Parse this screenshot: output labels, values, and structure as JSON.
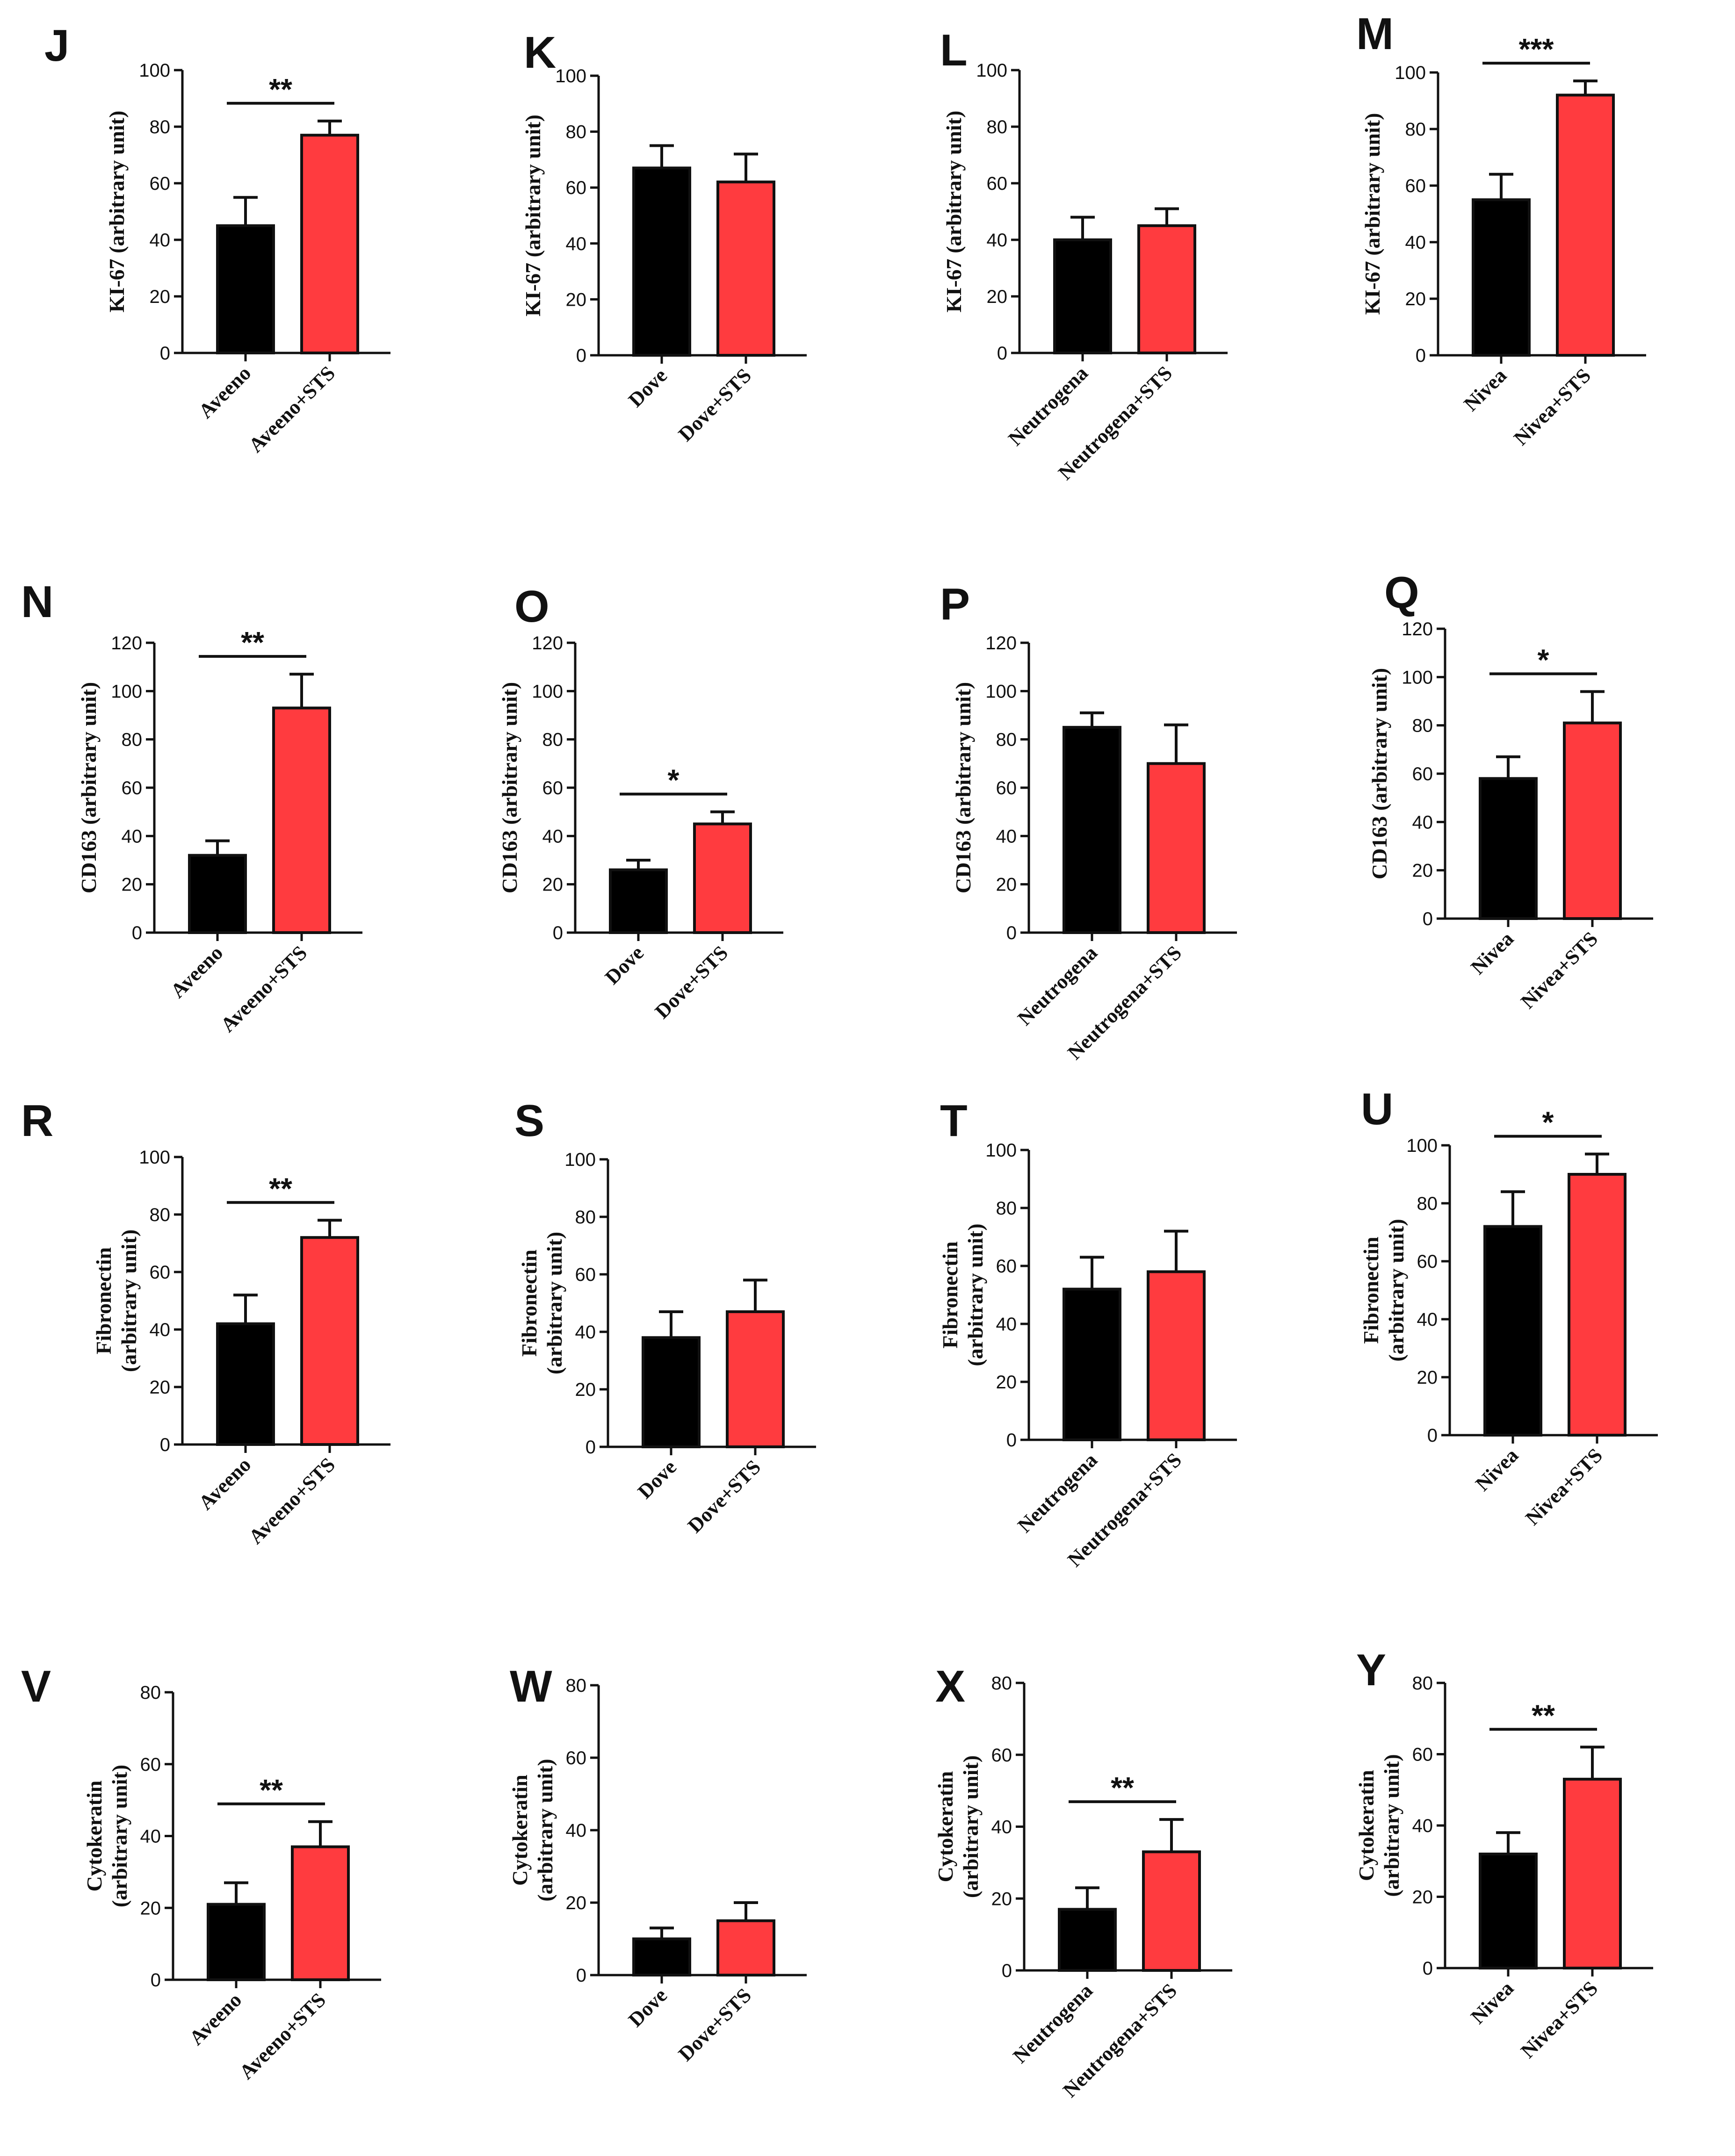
{
  "colors": {
    "control": "#000000",
    "treated": "#ff3b3f",
    "ink": "#111111"
  },
  "chart_data": [
    {
      "panel": "J",
      "type": "bar",
      "ylabel": "KI-67 (arbitrary unit)",
      "ylim": [
        0,
        100
      ],
      "ticks": [
        0,
        20,
        40,
        60,
        80,
        100
      ],
      "categories": [
        "Aveeno",
        "Aveeno+STS"
      ],
      "values": [
        45,
        77
      ],
      "errors": [
        10,
        5
      ],
      "significance": "**"
    },
    {
      "panel": "K",
      "type": "bar",
      "ylabel": "KI-67 (arbitrary unit)",
      "ylim": [
        0,
        100
      ],
      "ticks": [
        0,
        20,
        40,
        60,
        80,
        100
      ],
      "categories": [
        "Dove",
        "Dove+STS"
      ],
      "values": [
        67,
        62
      ],
      "errors": [
        8,
        10
      ],
      "significance": ""
    },
    {
      "panel": "L",
      "type": "bar",
      "ylabel": "KI-67 (arbitrary unit)",
      "ylim": [
        0,
        100
      ],
      "ticks": [
        0,
        20,
        40,
        60,
        80,
        100
      ],
      "categories": [
        "Neutrogena",
        "Neutrogena+STS"
      ],
      "values": [
        40,
        45
      ],
      "errors": [
        8,
        6
      ],
      "significance": ""
    },
    {
      "panel": "M",
      "type": "bar",
      "ylabel": "KI-67 (arbitrary unit)",
      "ylim": [
        0,
        100
      ],
      "ticks": [
        0,
        20,
        40,
        60,
        80,
        100
      ],
      "categories": [
        "Nivea",
        "Nivea+STS"
      ],
      "values": [
        55,
        92
      ],
      "errors": [
        9,
        5
      ],
      "significance": "***"
    },
    {
      "panel": "N",
      "type": "bar",
      "ylabel": "CD163 (arbitrary unit)",
      "ylim": [
        0,
        120
      ],
      "ticks": [
        0,
        20,
        40,
        60,
        80,
        100,
        120
      ],
      "categories": [
        "Aveeno",
        "Aveeno+STS"
      ],
      "values": [
        32,
        93
      ],
      "errors": [
        6,
        14
      ],
      "significance": "**"
    },
    {
      "panel": "O",
      "type": "bar",
      "ylabel": "CD163 (arbitrary unit)",
      "ylim": [
        0,
        120
      ],
      "ticks": [
        0,
        20,
        40,
        60,
        80,
        100,
        120
      ],
      "categories": [
        "Dove",
        "Dove+STS"
      ],
      "values": [
        26,
        45
      ],
      "errors": [
        4,
        5
      ],
      "significance": "*"
    },
    {
      "panel": "P",
      "type": "bar",
      "ylabel": "CD163 (arbitrary unit)",
      "ylim": [
        0,
        120
      ],
      "ticks": [
        0,
        20,
        40,
        60,
        80,
        100,
        120
      ],
      "categories": [
        "Neutrogena",
        "Neutrogena+STS"
      ],
      "values": [
        85,
        70
      ],
      "errors": [
        6,
        16
      ],
      "significance": ""
    },
    {
      "panel": "Q",
      "type": "bar",
      "ylabel": "CD163 (arbitrary unit)",
      "ylim": [
        0,
        120
      ],
      "ticks": [
        0,
        20,
        40,
        60,
        80,
        100,
        120
      ],
      "categories": [
        "Nivea",
        "Nivea+STS"
      ],
      "values": [
        58,
        81
      ],
      "errors": [
        9,
        13
      ],
      "significance": "*"
    },
    {
      "panel": "R",
      "type": "bar",
      "ylabel": "Fibronectin",
      "ylabel2": "(arbitrary unit)",
      "ylim": [
        0,
        100
      ],
      "ticks": [
        0,
        20,
        40,
        60,
        80,
        100
      ],
      "categories": [
        "Aveeno",
        "Aveeno+STS"
      ],
      "values": [
        42,
        72
      ],
      "errors": [
        10,
        6
      ],
      "significance": "**"
    },
    {
      "panel": "S",
      "type": "bar",
      "ylabel": "Fibronectin",
      "ylabel2": "(arbitrary unit)",
      "ylim": [
        0,
        100
      ],
      "ticks": [
        0,
        20,
        40,
        60,
        80,
        100
      ],
      "categories": [
        "Dove",
        "Dove+STS"
      ],
      "values": [
        38,
        47
      ],
      "errors": [
        9,
        11
      ],
      "significance": ""
    },
    {
      "panel": "T",
      "type": "bar",
      "ylabel": "Fibronectin",
      "ylabel2": "(arbitrary unit)",
      "ylim": [
        0,
        100
      ],
      "ticks": [
        0,
        20,
        40,
        60,
        80,
        100
      ],
      "categories": [
        "Neutrogena",
        "Neutrogena+STS"
      ],
      "values": [
        52,
        58
      ],
      "errors": [
        11,
        14
      ],
      "significance": ""
    },
    {
      "panel": "U",
      "type": "bar",
      "ylabel": "Fibronectin",
      "ylabel2": "(arbitrary unit)",
      "ylim": [
        0,
        100
      ],
      "ticks": [
        0,
        20,
        40,
        60,
        80,
        100
      ],
      "categories": [
        "Nivea",
        "Nivea+STS"
      ],
      "values": [
        72,
        90
      ],
      "errors": [
        12,
        7
      ],
      "significance": "*"
    },
    {
      "panel": "V",
      "type": "bar",
      "ylabel": "Cytokeratin",
      "ylabel2": "(arbitrary unit)",
      "ylim": [
        0,
        80
      ],
      "ticks": [
        0,
        20,
        40,
        60,
        80
      ],
      "categories": [
        "Aveeno",
        "Aveeno+STS"
      ],
      "values": [
        21,
        37
      ],
      "errors": [
        6,
        7
      ],
      "significance": "**"
    },
    {
      "panel": "W",
      "type": "bar",
      "ylabel": "Cytokeratin",
      "ylabel2": "(arbitrary unit)",
      "ylim": [
        0,
        80
      ],
      "ticks": [
        0,
        20,
        40,
        60,
        80
      ],
      "categories": [
        "Dove",
        "Dove+STS"
      ],
      "values": [
        10,
        15
      ],
      "errors": [
        3,
        5
      ],
      "significance": ""
    },
    {
      "panel": "X",
      "type": "bar",
      "ylabel": "Cytokeratin",
      "ylabel2": "(arbitrary unit)",
      "ylim": [
        0,
        80
      ],
      "ticks": [
        0,
        20,
        40,
        60,
        80
      ],
      "categories": [
        "Neutrogena",
        "Neutrogena+STS"
      ],
      "values": [
        17,
        33
      ],
      "errors": [
        6,
        9
      ],
      "significance": "**"
    },
    {
      "panel": "Y",
      "type": "bar",
      "ylabel": "Cytokeratin",
      "ylabel2": "(arbitrary unit)",
      "ylim": [
        0,
        80
      ],
      "ticks": [
        0,
        20,
        40,
        60,
        80
      ],
      "categories": [
        "Nivea",
        "Nivea+STS"
      ],
      "values": [
        32,
        53
      ],
      "errors": [
        6,
        9
      ],
      "significance": "**"
    }
  ]
}
